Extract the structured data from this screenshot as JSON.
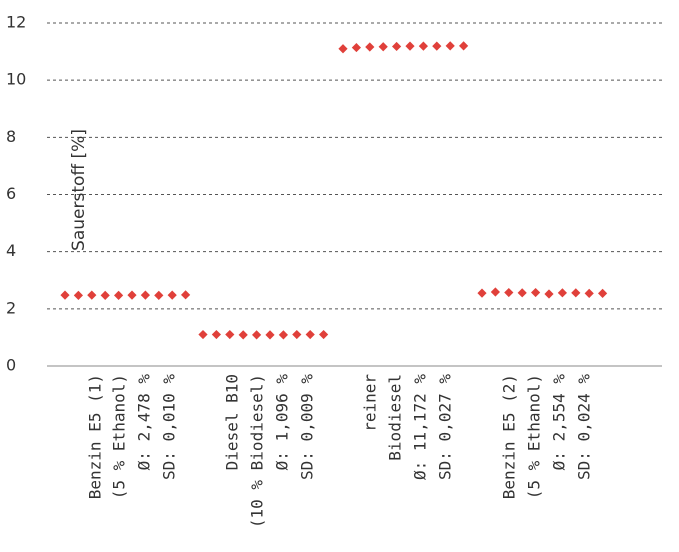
{
  "chart_data": {
    "type": "scatter",
    "ylabel": "Sauerstoff [%]",
    "ylim": [
      0,
      12
    ],
    "yticks": [
      "0",
      "2",
      "4",
      "6",
      "8",
      "10",
      "12"
    ],
    "grid": true,
    "marker_color": "#e0403a",
    "groups": [
      {
        "label_lines": [
          "Benzin E5 (1)",
          "(5 % Ethanol)",
          "Ø: 2,478 %",
          "SD: 0,010 %"
        ],
        "values": [
          2.48,
          2.47,
          2.48,
          2.47,
          2.47,
          2.48,
          2.48,
          2.47,
          2.48,
          2.49
        ]
      },
      {
        "label_lines": [
          "Diesel B10",
          "(10 % Biodiesel)",
          "Ø: 1,096 %",
          "SD: 0,009 %"
        ],
        "values": [
          1.1,
          1.1,
          1.1,
          1.09,
          1.09,
          1.09,
          1.09,
          1.1,
          1.1,
          1.1
        ]
      },
      {
        "label_lines": [
          "reiner",
          "Biodiesel",
          "Ø: 11,172 %",
          "SD: 0,027 %"
        ],
        "values": [
          11.1,
          11.14,
          11.16,
          11.17,
          11.18,
          11.19,
          11.19,
          11.19,
          11.2,
          11.2
        ]
      },
      {
        "label_lines": [
          "Benzin E5 (2)",
          "(5 % Ethanol)",
          "Ø: 2,554 %",
          "SD: 0,024 %"
        ],
        "values": [
          2.55,
          2.59,
          2.57,
          2.56,
          2.57,
          2.52,
          2.56,
          2.56,
          2.54,
          2.54
        ]
      }
    ]
  }
}
